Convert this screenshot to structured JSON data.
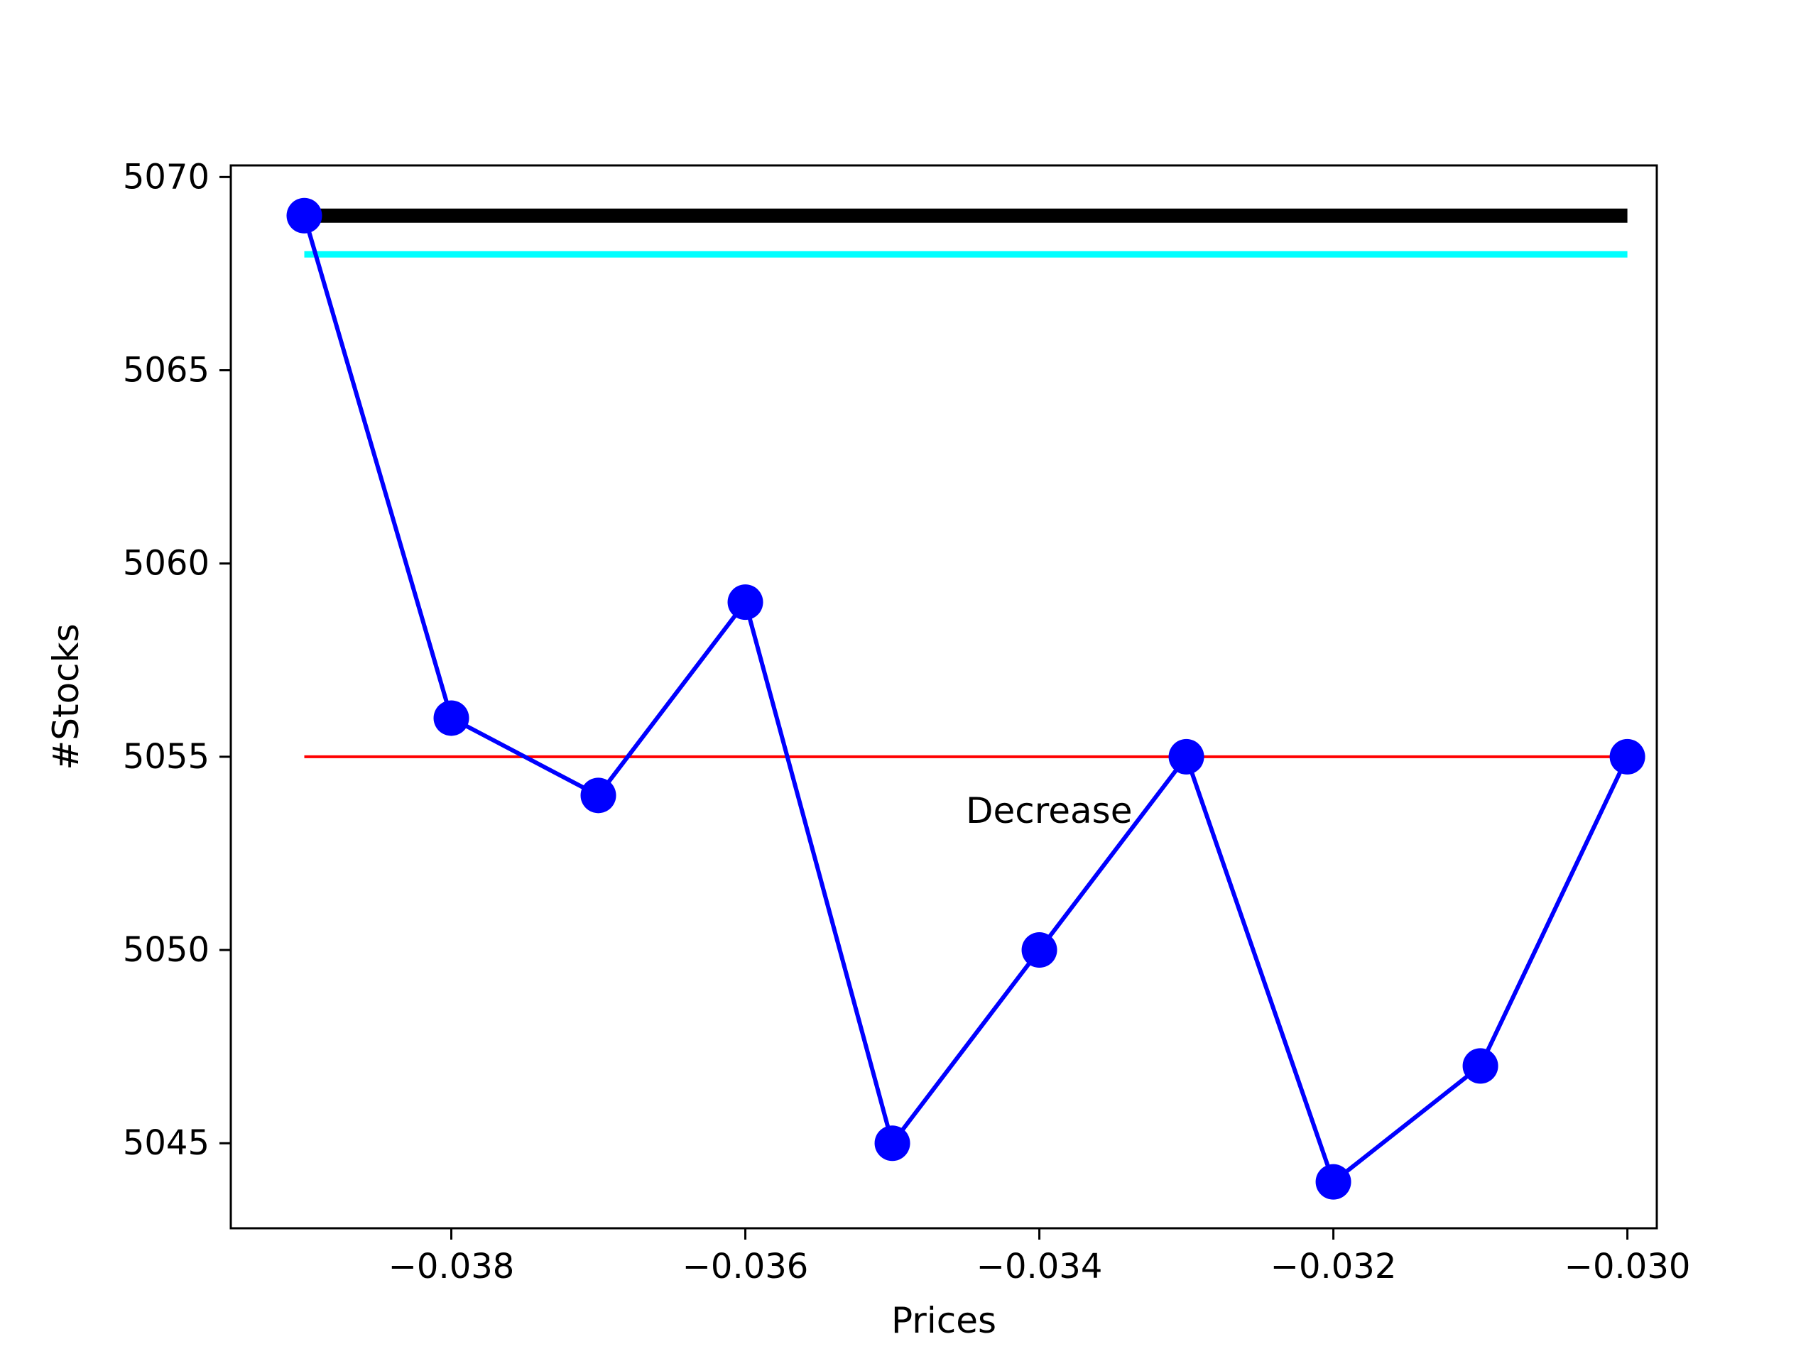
{
  "chart_data": {
    "type": "line",
    "xlabel": "Prices",
    "ylabel": "#Stocks",
    "xlim": [
      -0.0395,
      -0.0298
    ],
    "ylim": [
      5042.8,
      5070.3
    ],
    "xticks": [
      -0.038,
      -0.036,
      -0.034,
      -0.032,
      -0.03
    ],
    "xtick_labels": [
      "−0.038",
      "−0.036",
      "−0.034",
      "−0.032",
      "−0.030"
    ],
    "yticks": [
      5045,
      5050,
      5055,
      5060,
      5065,
      5070
    ],
    "ytick_labels": [
      "5045",
      "5050",
      "5055",
      "5060",
      "5065",
      "5070"
    ],
    "grid": false,
    "series": [
      {
        "color": "#0000ff",
        "marker": "circle",
        "x": [
          -0.039,
          -0.038,
          -0.037,
          -0.036,
          -0.035,
          -0.034,
          -0.033,
          -0.032,
          -0.031,
          -0.03
        ],
        "y": [
          5069,
          5056,
          5054,
          5059,
          5045,
          5050,
          5055,
          5044,
          5047,
          5055
        ]
      }
    ],
    "reference_lines": [
      {
        "color": "#000000",
        "y": 5069,
        "x_start": -0.039,
        "x_end": -0.03,
        "style": "thick"
      },
      {
        "color": "#00ffff",
        "y": 5068,
        "x_start": -0.039,
        "x_end": -0.03,
        "style": "medium"
      },
      {
        "color": "#ff0000",
        "y": 5055,
        "x_start": -0.039,
        "x_end": -0.03,
        "style": "thin"
      }
    ],
    "annotations": [
      {
        "text": "Decrease",
        "x": -0.0345,
        "y": 5053.6
      }
    ]
  }
}
